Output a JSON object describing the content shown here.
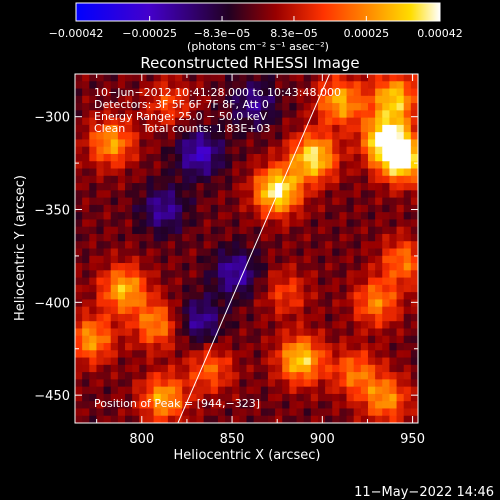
{
  "chart_data": {
    "type": "heatmap",
    "title": "Reconstructed RHESSI Image",
    "xlabel": "Heliocentric X (arcsec)",
    "ylabel": "Heliocentric Y (arcsec)",
    "xlim": [
      763,
      953
    ],
    "ylim": [
      -465,
      -277
    ],
    "x_ticks": [
      800,
      850,
      900,
      950
    ],
    "x_tick_labels": [
      "800",
      "850",
      "900",
      "950"
    ],
    "y_ticks": [
      -300,
      -350,
      -400,
      -450
    ],
    "y_tick_labels": [
      "−300",
      "−350",
      "−400",
      "−450"
    ],
    "colorbar": {
      "range": [
        -0.00042,
        0.00042
      ],
      "ticks": [
        -0.00042,
        -0.00025,
        -8.3e-05,
        8.3e-05,
        0.00025,
        0.00042
      ],
      "tick_labels": [
        "−0.00042",
        "−0.00025",
        "−8.3e−05",
        "8.3e−05",
        "0.00025",
        "0.00042"
      ],
      "unit_label": "(photons cm⁻² s⁻¹ asec⁻²)",
      "colors": [
        "#0000ff",
        "#4400cc",
        "#220022",
        "#990000",
        "#ff3300",
        "#ff8800",
        "#ffdd00",
        "#ffffff"
      ]
    },
    "annotations": [
      "10−Jun−2012 10:41:28.000 to 10:43:48.000",
      "Detectors: 3F 5F 6F 7F 8F, Att 0",
      "Energy Range: 25.0 − 50.0 keV",
      "Clean     Total counts: 1.83E+03",
      "Position of Peak = [944,−323]"
    ],
    "limb_line": [
      [
        820,
        -465
      ],
      [
        904,
        -277
      ]
    ],
    "grid_size": [
      48,
      48
    ],
    "sources": [
      {
        "x": 875,
        "y": -340,
        "value": 0.00042
      },
      {
        "x": 895,
        "y": -322,
        "value": 0.00038
      },
      {
        "x": 935,
        "y": -312,
        "value": 0.0004
      },
      {
        "x": 944,
        "y": -323,
        "value": 0.00042
      },
      {
        "x": 940,
        "y": -290,
        "value": 0.00033
      },
      {
        "x": 910,
        "y": -292,
        "value": 0.0003
      },
      {
        "x": 783,
        "y": -314,
        "value": 0.00028
      },
      {
        "x": 790,
        "y": -393,
        "value": 0.00031
      },
      {
        "x": 772,
        "y": -420,
        "value": 0.00027
      },
      {
        "x": 808,
        "y": -412,
        "value": 0.00025
      },
      {
        "x": 812,
        "y": -452,
        "value": 0.00029
      },
      {
        "x": 838,
        "y": -436,
        "value": 0.0002
      },
      {
        "x": 888,
        "y": -431,
        "value": 0.00035
      },
      {
        "x": 918,
        "y": -438,
        "value": 0.00022
      },
      {
        "x": 935,
        "y": -452,
        "value": 0.00026
      },
      {
        "x": 930,
        "y": -400,
        "value": 0.00024
      },
      {
        "x": 945,
        "y": -378,
        "value": 0.00022
      },
      {
        "x": 815,
        "y": -293,
        "value": 0.00016
      },
      {
        "x": 880,
        "y": -395,
        "value": 0.00015
      }
    ],
    "negative_regions": [
      {
        "x": 832,
        "y": -320,
        "value": -0.00025
      },
      {
        "x": 852,
        "y": -384,
        "value": -0.00022
      },
      {
        "x": 812,
        "y": -350,
        "value": -0.0002
      },
      {
        "x": 862,
        "y": -293,
        "value": -0.00018
      },
      {
        "x": 832,
        "y": -410,
        "value": -0.0002
      }
    ]
  },
  "footer": {
    "timestamp": "11−May−2022 14:46"
  }
}
